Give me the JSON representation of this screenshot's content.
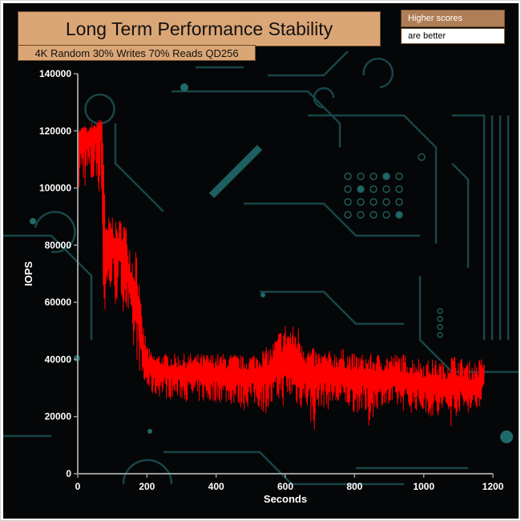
{
  "chart_data": {
    "type": "line",
    "title": "Long Term Performance Stability",
    "subtitle": "4K Random 30% Writes 70% Reads QD256",
    "note_top": "Higher scores",
    "note_bottom": "are better",
    "xlabel": "Seconds",
    "ylabel": "IOPS",
    "xlim": [
      0,
      1200
    ],
    "ylim": [
      0,
      140000
    ],
    "x_ticks": [
      0,
      200,
      400,
      600,
      800,
      1000,
      1200
    ],
    "y_ticks": [
      0,
      20000,
      40000,
      60000,
      80000,
      100000,
      120000,
      140000
    ],
    "grid": false,
    "legend": "none",
    "series": [
      {
        "color": "#ff0000",
        "envelope": {
          "x": [
            0,
            10,
            20,
            30,
            40,
            50,
            60,
            70,
            75,
            80,
            90,
            100,
            110,
            120,
            130,
            140,
            150,
            160,
            170,
            180,
            190,
            200,
            210,
            220,
            240,
            260,
            280,
            300,
            320,
            340,
            360,
            380,
            400,
            420,
            440,
            460,
            480,
            500,
            520,
            540,
            560,
            580,
            600,
            620,
            640,
            660,
            680,
            700,
            720,
            740,
            760,
            780,
            800,
            820,
            840,
            860,
            880,
            900,
            920,
            940,
            960,
            980,
            1000,
            1020,
            1040,
            1060,
            1080,
            1100,
            1120,
            1140,
            1160,
            1175
          ],
          "high": [
            120000,
            121000,
            122000,
            120000,
            123000,
            122000,
            124000,
            125000,
            118000,
            86000,
            90000,
            91000,
            88000,
            89000,
            90000,
            87000,
            82000,
            78000,
            83000,
            62000,
            52000,
            46000,
            43000,
            42000,
            42000,
            42000,
            42000,
            42000,
            42000,
            42000,
            42000,
            42000,
            42000,
            42000,
            42000,
            42000,
            41000,
            42000,
            43000,
            44000,
            45000,
            50000,
            53000,
            52000,
            52000,
            45000,
            44000,
            43000,
            43000,
            43000,
            44000,
            43000,
            42000,
            42000,
            42000,
            42000,
            42000,
            42000,
            42000,
            42000,
            41000,
            41000,
            40000,
            40000,
            40000,
            39000,
            42000,
            41000,
            40000,
            39000,
            40000,
            41000
          ],
          "low": [
            95000,
            98000,
            100000,
            99000,
            97000,
            100000,
            98000,
            96000,
            27000,
            60000,
            62000,
            61000,
            58000,
            60000,
            57000,
            56000,
            45000,
            42000,
            40000,
            35000,
            30000,
            29000,
            28000,
            27000,
            27000,
            26000,
            26000,
            26000,
            25000,
            25000,
            25000,
            24000,
            25000,
            25000,
            24000,
            24000,
            22000,
            24000,
            23000,
            21000,
            22000,
            25000,
            23000,
            26000,
            22000,
            24000,
            13000,
            24000,
            22000,
            24000,
            22000,
            23000,
            21000,
            22000,
            15000,
            22000,
            24000,
            22000,
            23000,
            22000,
            21000,
            22000,
            21000,
            20000,
            17000,
            22000,
            16000,
            22000,
            21000,
            22000,
            23000,
            30000
          ],
          "typical": [
            118000,
            119000,
            120000,
            118000,
            119000,
            120000,
            121000,
            120000,
            95000,
            75000,
            78000,
            80000,
            76000,
            78000,
            77000,
            74000,
            66000,
            58000,
            60000,
            48000,
            40000,
            37000,
            36000,
            35000,
            35000,
            35000,
            34000,
            34000,
            34000,
            34000,
            34000,
            34000,
            34000,
            34000,
            33000,
            33000,
            33000,
            33000,
            33000,
            34000,
            34000,
            36000,
            38000,
            37000,
            36000,
            34000,
            33000,
            33000,
            33000,
            33000,
            33000,
            33000,
            32000,
            32000,
            32000,
            32000,
            32000,
            32000,
            32000,
            32000,
            31000,
            31000,
            30000,
            30000,
            30000,
            29000,
            31000,
            30000,
            30000,
            29000,
            30000,
            34000
          ]
        }
      }
    ]
  }
}
